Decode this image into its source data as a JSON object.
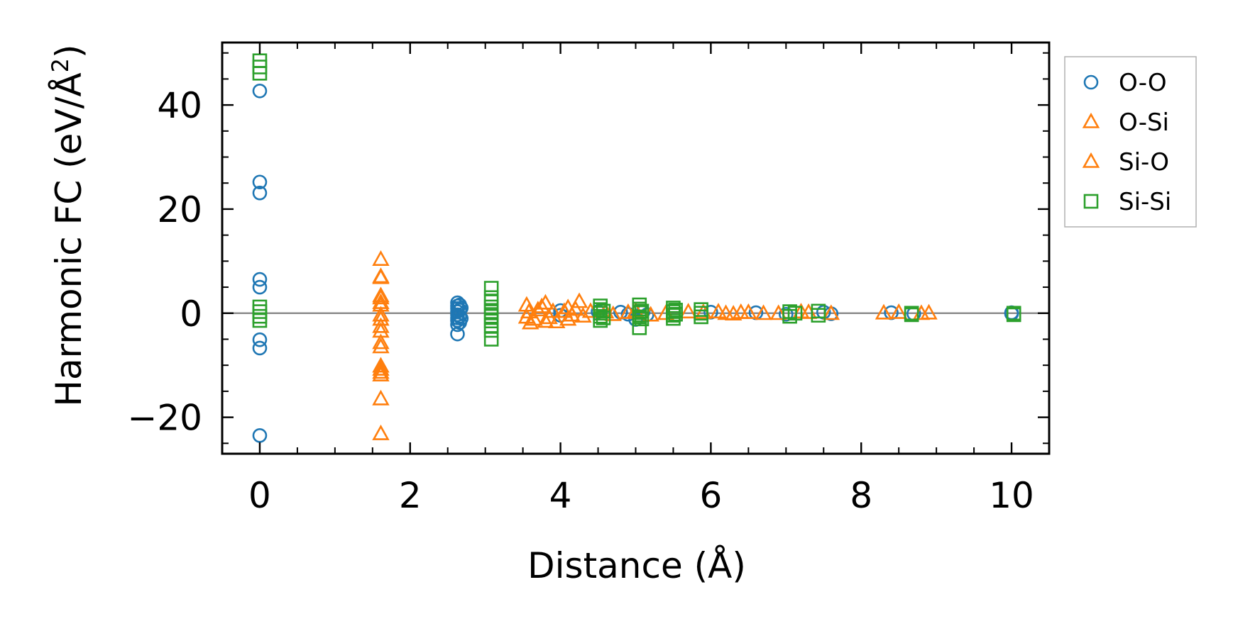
{
  "chart_data": {
    "type": "scatter",
    "xlabel": "Distance (Å)",
    "ylabel_main": "Harmonic FC (eV/Å",
    "ylabel_sup": "2",
    "ylabel_close": ")",
    "xlim": [
      -0.5,
      10.5
    ],
    "ylim": [
      -27,
      52
    ],
    "x_ticks": [
      0,
      2,
      4,
      6,
      8,
      10
    ],
    "x_tick_labels": [
      "0",
      "2",
      "4",
      "6",
      "8",
      "10"
    ],
    "y_ticks": [
      -20,
      0,
      20,
      40
    ],
    "y_tick_labels": [
      "−20",
      "0",
      "20",
      "40"
    ],
    "x_minor_step": 0.5,
    "y_minor_step": 5,
    "zero_line": true,
    "grid": false,
    "legend_position": "outside-right-top",
    "series": [
      {
        "name": "O-O",
        "marker": "circle",
        "color": "#1f77b4",
        "points": [
          [
            0,
            42.7
          ],
          [
            0,
            25.2
          ],
          [
            0,
            23.1
          ],
          [
            0,
            6.5
          ],
          [
            0,
            5.0
          ],
          [
            0,
            -5.1
          ],
          [
            0,
            -6.7
          ],
          [
            0,
            -23.5
          ],
          [
            2.63,
            2.0
          ],
          [
            2.63,
            1.4
          ],
          [
            2.63,
            0.9
          ],
          [
            2.63,
            0.3
          ],
          [
            2.63,
            -0.3
          ],
          [
            2.63,
            -0.9
          ],
          [
            2.63,
            -1.4
          ],
          [
            2.63,
            -2.2
          ],
          [
            2.63,
            -4.0
          ],
          [
            2.66,
            1.6
          ],
          [
            2.66,
            0.6
          ],
          [
            2.66,
            -0.6
          ],
          [
            2.66,
            -1.8
          ],
          [
            2.68,
            1.0
          ],
          [
            2.68,
            -1.0
          ],
          [
            4.0,
            0.5
          ],
          [
            4.0,
            -0.4
          ],
          [
            4.5,
            0.3
          ],
          [
            4.8,
            0.2
          ],
          [
            4.9,
            -0.2
          ],
          [
            5.0,
            -1.2
          ],
          [
            5.1,
            0.3
          ],
          [
            5.15,
            -0.3
          ],
          [
            6.0,
            0.2
          ],
          [
            6.6,
            0.1
          ],
          [
            7.0,
            -0.2
          ],
          [
            7.5,
            0.2
          ],
          [
            7.6,
            -0.1
          ],
          [
            8.4,
            0.1
          ],
          [
            8.7,
            -0.1
          ],
          [
            10.0,
            0.1
          ],
          [
            10.0,
            -0.1
          ]
        ]
      },
      {
        "name": "O-Si",
        "marker": "triangle",
        "color": "#ff7f0e",
        "points": [
          [
            1.61,
            10.3
          ],
          [
            1.61,
            6.8
          ],
          [
            1.61,
            2.9
          ],
          [
            1.61,
            1.5
          ],
          [
            1.61,
            -1.2
          ],
          [
            1.61,
            -3.5
          ],
          [
            1.61,
            -5.7
          ],
          [
            1.61,
            -10.8
          ],
          [
            1.61,
            -11.9
          ],
          [
            1.61,
            -16.5
          ],
          [
            1.61,
            -23.2
          ],
          [
            3.55,
            1.5
          ],
          [
            3.55,
            -0.8
          ],
          [
            3.6,
            -1.9
          ],
          [
            3.7,
            0.6
          ],
          [
            3.8,
            1.9
          ],
          [
            3.8,
            -1.6
          ],
          [
            3.9,
            0.3
          ],
          [
            4.1,
            1.0
          ],
          [
            4.1,
            -1.2
          ],
          [
            4.2,
            0.7
          ],
          [
            4.3,
            -0.6
          ],
          [
            4.4,
            0.3
          ],
          [
            4.7,
            -0.3
          ],
          [
            5.0,
            0.4
          ],
          [
            5.2,
            -0.4
          ],
          [
            5.7,
            0.2
          ],
          [
            6.1,
            0.2
          ],
          [
            6.3,
            -0.2
          ],
          [
            6.5,
            0.1
          ],
          [
            6.7,
            -0.1
          ],
          [
            7.3,
            0.1
          ],
          [
            7.6,
            -0.1
          ],
          [
            8.3,
            0.0
          ],
          [
            8.9,
            0.0
          ]
        ]
      },
      {
        "name": "Si-O",
        "marker": "triangle",
        "color": "#ff7f0e",
        "points": [
          [
            1.61,
            7.0
          ],
          [
            1.61,
            3.3
          ],
          [
            1.61,
            2.0
          ],
          [
            1.61,
            -0.4
          ],
          [
            1.61,
            -2.6
          ],
          [
            1.61,
            -6.5
          ],
          [
            1.61,
            -10.2
          ],
          [
            1.61,
            -11.4
          ],
          [
            3.58,
            0.2
          ],
          [
            3.65,
            -1.2
          ],
          [
            3.75,
            1.2
          ],
          [
            3.85,
            -0.9
          ],
          [
            3.95,
            -1.7
          ],
          [
            4.05,
            0.3
          ],
          [
            4.15,
            -0.4
          ],
          [
            4.25,
            2.2
          ],
          [
            4.6,
            0.2
          ],
          [
            4.9,
            0.1
          ],
          [
            5.4,
            -0.1
          ],
          [
            5.9,
            0.1
          ],
          [
            6.2,
            -0.1
          ],
          [
            6.4,
            0.1
          ],
          [
            6.9,
            -0.1
          ],
          [
            7.2,
            0.2
          ],
          [
            8.5,
            0.1
          ],
          [
            8.8,
            -0.1
          ]
        ]
      },
      {
        "name": "Si-Si",
        "marker": "square",
        "color": "#2ca02c",
        "points": [
          [
            0,
            48.5
          ],
          [
            0,
            47.3
          ],
          [
            0,
            46.1
          ],
          [
            0,
            1.2
          ],
          [
            0,
            0.3
          ],
          [
            0,
            -0.6
          ],
          [
            0,
            -1.4
          ],
          [
            3.08,
            4.8
          ],
          [
            3.08,
            3.0
          ],
          [
            3.08,
            2.2
          ],
          [
            3.08,
            1.2
          ],
          [
            3.08,
            0.3
          ],
          [
            3.08,
            -0.6
          ],
          [
            3.08,
            -1.5
          ],
          [
            3.08,
            -2.4
          ],
          [
            3.08,
            -3.3
          ],
          [
            3.08,
            -5.0
          ],
          [
            4.53,
            1.4
          ],
          [
            4.53,
            0.7
          ],
          [
            4.53,
            0.0
          ],
          [
            4.53,
            -0.6
          ],
          [
            4.53,
            -1.4
          ],
          [
            4.57,
            0.4
          ],
          [
            4.57,
            -0.9
          ],
          [
            5.05,
            1.6
          ],
          [
            5.05,
            0.8
          ],
          [
            5.05,
            0.1
          ],
          [
            5.05,
            -0.7
          ],
          [
            5.05,
            -2.8
          ],
          [
            5.08,
            0.4
          ],
          [
            5.08,
            -1.1
          ],
          [
            5.5,
            1.0
          ],
          [
            5.5,
            0.3
          ],
          [
            5.5,
            -0.4
          ],
          [
            5.5,
            -1.0
          ],
          [
            5.53,
            0.6
          ],
          [
            5.53,
            -0.2
          ],
          [
            5.87,
            0.7
          ],
          [
            5.87,
            0.0
          ],
          [
            5.87,
            -0.7
          ],
          [
            7.05,
            0.3
          ],
          [
            7.05,
            -0.6
          ],
          [
            7.12,
            0.0
          ],
          [
            7.43,
            0.4
          ],
          [
            7.43,
            -0.4
          ],
          [
            8.67,
            0.0
          ],
          [
            8.67,
            -0.3
          ],
          [
            10.03,
            0.0
          ],
          [
            10.03,
            -0.3
          ]
        ]
      }
    ]
  }
}
